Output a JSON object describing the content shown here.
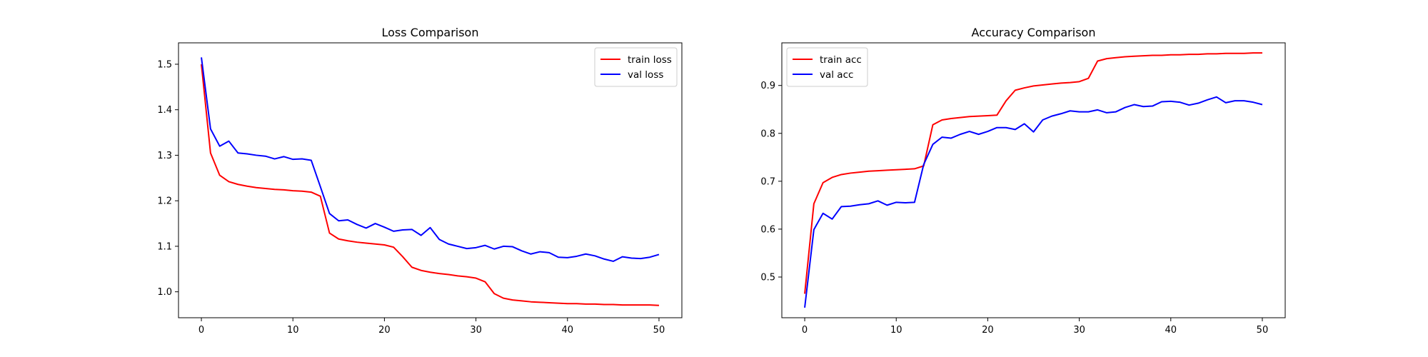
{
  "chart_data": [
    {
      "type": "line",
      "title": "Loss Comparison",
      "xlabel": "",
      "ylabel": "",
      "xlim": [
        -2.5,
        52.5
      ],
      "ylim": [
        0.943,
        1.547
      ],
      "xticks": [
        0,
        10,
        20,
        30,
        40,
        50
      ],
      "yticks": [
        1.0,
        1.1,
        1.2,
        1.3,
        1.4,
        1.5
      ],
      "legend_position": "top-right",
      "grid": false,
      "x": [
        0,
        1,
        2,
        3,
        4,
        5,
        6,
        7,
        8,
        9,
        10,
        11,
        12,
        13,
        14,
        15,
        16,
        17,
        18,
        19,
        20,
        21,
        22,
        23,
        24,
        25,
        26,
        27,
        28,
        29,
        30,
        31,
        32,
        33,
        34,
        35,
        36,
        37,
        38,
        39,
        40,
        41,
        42,
        43,
        44,
        45,
        46,
        47,
        48,
        49,
        50
      ],
      "series": [
        {
          "name": "train loss",
          "color": "#ff0000",
          "values": [
            1.5,
            1.305,
            1.256,
            1.242,
            1.236,
            1.232,
            1.229,
            1.227,
            1.225,
            1.224,
            1.222,
            1.221,
            1.219,
            1.21,
            1.129,
            1.116,
            1.112,
            1.109,
            1.107,
            1.105,
            1.103,
            1.098,
            1.077,
            1.054,
            1.047,
            1.043,
            1.04,
            1.038,
            1.035,
            1.033,
            1.03,
            1.022,
            0.996,
            0.986,
            0.982,
            0.98,
            0.978,
            0.977,
            0.976,
            0.975,
            0.974,
            0.974,
            0.973,
            0.973,
            0.972,
            0.972,
            0.971,
            0.971,
            0.971,
            0.971,
            0.97
          ]
        },
        {
          "name": "val loss",
          "color": "#0000ff",
          "values": [
            1.515,
            1.358,
            1.32,
            1.331,
            1.305,
            1.303,
            1.3,
            1.298,
            1.292,
            1.297,
            1.291,
            1.292,
            1.289,
            1.231,
            1.172,
            1.156,
            1.158,
            1.148,
            1.14,
            1.15,
            1.142,
            1.133,
            1.136,
            1.137,
            1.124,
            1.141,
            1.115,
            1.105,
            1.1,
            1.095,
            1.097,
            1.102,
            1.094,
            1.1,
            1.099,
            1.09,
            1.083,
            1.088,
            1.086,
            1.076,
            1.075,
            1.078,
            1.083,
            1.079,
            1.072,
            1.067,
            1.077,
            1.074,
            1.073,
            1.076,
            1.082
          ]
        }
      ]
    },
    {
      "type": "line",
      "title": "Accuracy Comparison",
      "xlabel": "",
      "ylabel": "",
      "xlim": [
        -2.5,
        52.5
      ],
      "ylim": [
        0.415,
        0.989
      ],
      "xticks": [
        0,
        10,
        20,
        30,
        40,
        50
      ],
      "yticks": [
        0.5,
        0.6,
        0.7,
        0.8,
        0.9
      ],
      "legend_position": "top-left",
      "grid": false,
      "x": [
        0,
        1,
        2,
        3,
        4,
        5,
        6,
        7,
        8,
        9,
        10,
        11,
        12,
        13,
        14,
        15,
        16,
        17,
        18,
        19,
        20,
        21,
        22,
        23,
        24,
        25,
        26,
        27,
        28,
        29,
        30,
        31,
        32,
        33,
        34,
        35,
        36,
        37,
        38,
        39,
        40,
        41,
        42,
        43,
        44,
        45,
        46,
        47,
        48,
        49,
        50
      ],
      "series": [
        {
          "name": "train acc",
          "color": "#ff0000",
          "values": [
            0.465,
            0.653,
            0.697,
            0.708,
            0.714,
            0.717,
            0.719,
            0.721,
            0.722,
            0.723,
            0.724,
            0.725,
            0.726,
            0.732,
            0.818,
            0.828,
            0.831,
            0.833,
            0.835,
            0.836,
            0.837,
            0.838,
            0.868,
            0.89,
            0.895,
            0.899,
            0.901,
            0.903,
            0.905,
            0.906,
            0.908,
            0.915,
            0.951,
            0.956,
            0.958,
            0.96,
            0.961,
            0.962,
            0.963,
            0.963,
            0.964,
            0.964,
            0.965,
            0.965,
            0.966,
            0.966,
            0.967,
            0.967,
            0.967,
            0.968,
            0.968
          ]
        },
        {
          "name": "val acc",
          "color": "#0000ff",
          "values": [
            0.436,
            0.599,
            0.633,
            0.621,
            0.647,
            0.648,
            0.651,
            0.653,
            0.659,
            0.65,
            0.656,
            0.655,
            0.656,
            0.735,
            0.777,
            0.792,
            0.79,
            0.798,
            0.804,
            0.798,
            0.804,
            0.812,
            0.812,
            0.808,
            0.82,
            0.803,
            0.828,
            0.836,
            0.841,
            0.847,
            0.845,
            0.845,
            0.849,
            0.843,
            0.845,
            0.854,
            0.86,
            0.856,
            0.857,
            0.866,
            0.867,
            0.865,
            0.859,
            0.863,
            0.87,
            0.876,
            0.864,
            0.868,
            0.868,
            0.865,
            0.86
          ]
        }
      ]
    }
  ]
}
